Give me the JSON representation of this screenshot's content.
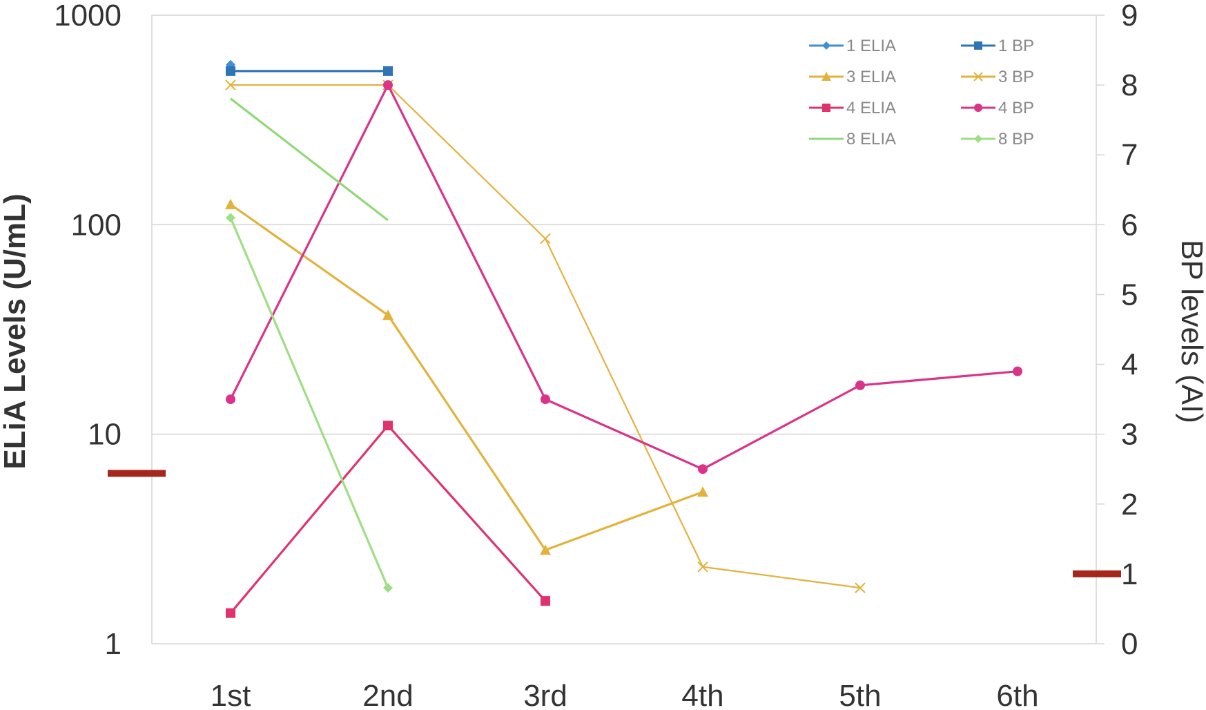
{
  "chart_data": {
    "type": "line",
    "categories": [
      "1st",
      "2nd",
      "3rd",
      "4th",
      "5th",
      "6th"
    ],
    "left_axis": {
      "label": "ELiA Levels (U/mL)",
      "scale": "log",
      "ylim": [
        1,
        1000
      ],
      "ticks": [
        "1",
        "10",
        "100",
        "1000"
      ]
    },
    "right_axis": {
      "label": "BP levels (AI)",
      "scale": "linear",
      "ylim": [
        0,
        9
      ],
      "ticks": [
        "0",
        "1",
        "2",
        "3",
        "4",
        "5",
        "6",
        "7",
        "8",
        "9"
      ]
    },
    "grid": "horizontal",
    "legend_position": "top-right",
    "cutoffs": [
      {
        "axis": "left",
        "value": 6.5,
        "color": "#a5261b"
      },
      {
        "axis": "right",
        "value": 1.0,
        "color": "#a5261b"
      }
    ],
    "series": [
      {
        "name": "1 ELIA",
        "axis": "left",
        "color": "#3d8fd6",
        "marker": "diamond",
        "values": [
          580,
          null,
          null,
          null,
          null,
          null
        ]
      },
      {
        "name": "1 BP",
        "axis": "right",
        "color": "#2e75b6",
        "marker": "square",
        "values": [
          8.2,
          8.2,
          null,
          null,
          null,
          null
        ]
      },
      {
        "name": "3 ELIA",
        "axis": "left",
        "color": "#e3b23c",
        "marker": "triangle",
        "values": [
          125,
          37,
          2.8,
          5.3,
          null,
          null
        ]
      },
      {
        "name": "3 BP",
        "axis": "right",
        "color": "#e3b23c",
        "marker": "x",
        "values": [
          8.0,
          8.0,
          5.8,
          1.1,
          0.8,
          null
        ]
      },
      {
        "name": "4 ELIA",
        "axis": "left",
        "color": "#e0336b",
        "marker": "square",
        "values": [
          1.4,
          11,
          1.6,
          null,
          null,
          null
        ]
      },
      {
        "name": "4 BP",
        "axis": "right",
        "color": "#d9338a",
        "marker": "circle",
        "values": [
          3.5,
          8.0,
          3.5,
          2.5,
          3.7,
          3.9
        ]
      },
      {
        "name": "8 ELIA",
        "axis": "left",
        "color": "#90d978",
        "marker": "none",
        "values": [
          400,
          105,
          null,
          null,
          null,
          null
        ]
      },
      {
        "name": "8 BP",
        "axis": "right",
        "color": "#9ede84",
        "marker": "diamond",
        "values": [
          6.1,
          0.8,
          null,
          null,
          null,
          null
        ]
      }
    ]
  }
}
